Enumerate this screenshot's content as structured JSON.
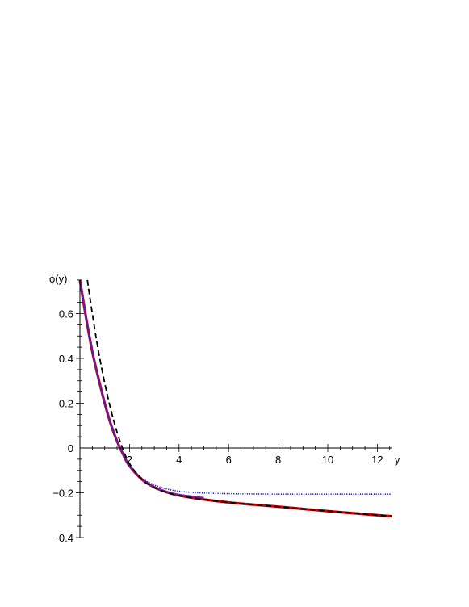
{
  "chart_data": {
    "type": "line",
    "title": "",
    "xlabel": "y",
    "ylabel": "ϕ(y)",
    "xlim": [
      0,
      12.6
    ],
    "ylim": [
      -0.4,
      0.75
    ],
    "x_ticks": [
      2,
      4,
      6,
      8,
      10,
      12
    ],
    "x_tick_labels": [
      "2",
      "4",
      "6",
      "8",
      "10",
      "12"
    ],
    "y_ticks": [
      -0.4,
      -0.2,
      0,
      0.2,
      0.4,
      0.6
    ],
    "y_tick_labels": [
      "−0.4",
      "−0.2",
      "0",
      "0.2",
      "0.4",
      "0.6"
    ],
    "grid": false,
    "legend": "none",
    "series": [
      {
        "style": "solid-thick",
        "color": "#cc0000",
        "x": [
          0.0,
          0.25,
          0.5,
          0.75,
          1.0,
          1.25,
          1.5,
          1.75,
          2.0,
          2.5,
          3.0,
          3.5,
          4.0,
          5.0,
          6.0,
          7.0,
          8.0,
          9.0,
          10.0,
          11.0,
          12.0,
          12.6
        ],
        "y": [
          0.75,
          0.58,
          0.43,
          0.31,
          0.2,
          0.105,
          0.03,
          -0.03,
          -0.08,
          -0.14,
          -0.175,
          -0.197,
          -0.212,
          -0.23,
          -0.243,
          -0.253,
          -0.262,
          -0.272,
          -0.282,
          -0.291,
          -0.3,
          -0.305
        ]
      },
      {
        "style": "solid",
        "color": "#7a1fa2",
        "x": [
          0.0,
          0.25,
          0.5,
          0.75,
          1.0,
          1.25,
          1.5,
          1.75,
          2.0,
          2.5,
          3.0,
          3.5,
          4.0,
          5.0
        ],
        "y": [
          0.75,
          0.58,
          0.43,
          0.31,
          0.2,
          0.105,
          0.03,
          -0.03,
          -0.08,
          -0.14,
          -0.175,
          -0.195,
          -0.208,
          -0.222
        ]
      },
      {
        "style": "dotted",
        "color": "#1a1acc",
        "x": [
          0.0,
          0.25,
          0.5,
          0.75,
          1.0,
          1.25,
          1.5,
          1.75,
          2.0,
          2.5,
          3.0,
          3.5,
          4.0,
          4.5,
          5.0,
          6.0,
          7.0,
          8.0,
          9.0,
          10.0,
          11.0,
          12.0,
          12.6
        ],
        "y": [
          0.75,
          0.58,
          0.43,
          0.31,
          0.2,
          0.105,
          0.03,
          -0.03,
          -0.08,
          -0.135,
          -0.165,
          -0.183,
          -0.193,
          -0.198,
          -0.201,
          -0.204,
          -0.205,
          -0.206,
          -0.206,
          -0.206,
          -0.206,
          -0.206,
          -0.206
        ]
      },
      {
        "style": "dashed",
        "color": "#000000",
        "x": [
          0.3,
          0.5,
          0.75,
          1.0,
          1.25,
          1.5,
          1.75,
          2.0,
          2.5,
          3.0,
          3.5,
          4.0,
          5.0,
          6.0,
          7.0,
          8.0,
          9.0,
          10.0,
          11.0,
          12.0,
          12.6
        ],
        "y": [
          0.75,
          0.6,
          0.43,
          0.29,
          0.17,
          0.07,
          -0.01,
          -0.07,
          -0.14,
          -0.177,
          -0.198,
          -0.213,
          -0.23,
          -0.243,
          -0.253,
          -0.262,
          -0.272,
          -0.282,
          -0.291,
          -0.3,
          -0.305
        ]
      }
    ]
  }
}
